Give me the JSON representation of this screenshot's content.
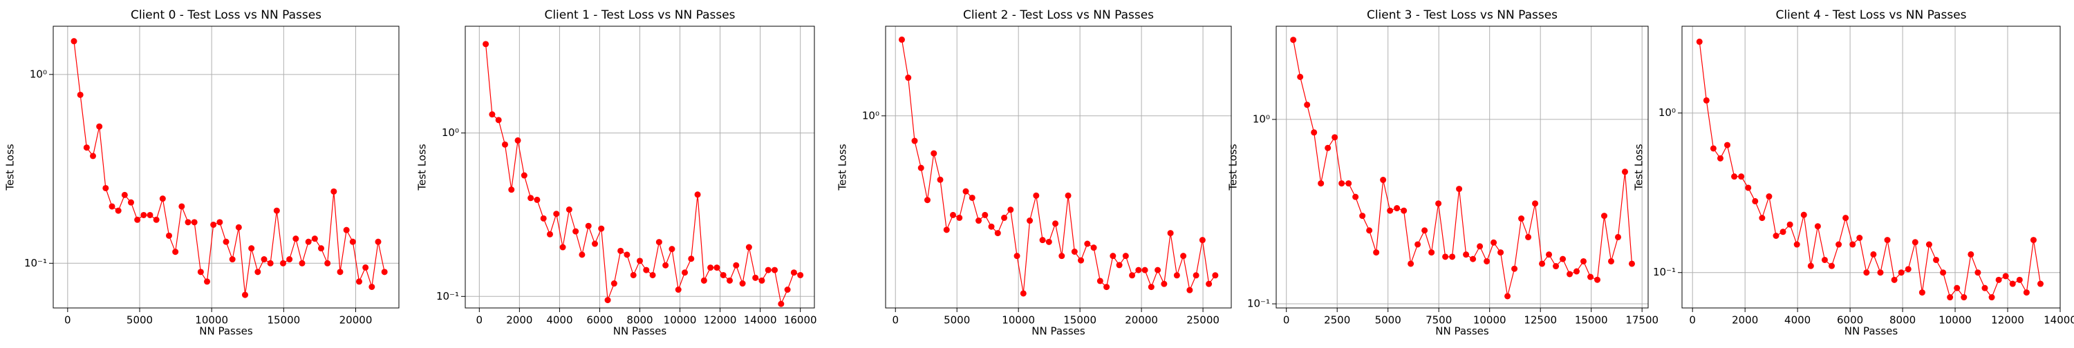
{
  "chart_data": [
    {
      "type": "line",
      "title": "Client 0 - Test Loss vs NN Passes",
      "x_label": "NN Passes",
      "y_label": "Test Loss",
      "color": "#ff0000",
      "log_y": true,
      "grid": true,
      "x": [
        440,
        880,
        1320,
        1760,
        2200,
        2640,
        3080,
        3520,
        3960,
        4400,
        4840,
        5280,
        5720,
        6160,
        6600,
        7040,
        7480,
        7920,
        8360,
        8800,
        9240,
        9680,
        10120,
        10560,
        11000,
        11440,
        11880,
        12320,
        12760,
        13200,
        13640,
        14080,
        14520,
        14960,
        15400,
        15840,
        16280,
        16720,
        17160,
        17600,
        18040,
        18480,
        18920,
        19360,
        19800,
        20240,
        20680,
        21120,
        21560,
        22000
      ],
      "values": [
        1.5,
        0.78,
        0.41,
        0.37,
        0.53,
        0.25,
        0.2,
        0.19,
        0.23,
        0.21,
        0.17,
        0.18,
        0.18,
        0.17,
        0.22,
        0.14,
        0.115,
        0.2,
        0.165,
        0.165,
        0.09,
        0.08,
        0.16,
        0.165,
        0.13,
        0.105,
        0.155,
        0.068,
        0.12,
        0.09,
        0.105,
        0.1,
        0.19,
        0.1,
        0.105,
        0.135,
        0.1,
        0.13,
        0.135,
        0.12,
        0.1,
        0.24,
        0.09,
        0.15,
        0.13,
        0.08,
        0.095,
        0.075,
        0.13,
        0.09
      ],
      "xlim": [
        -1000,
        23000
      ],
      "xticks": [
        0,
        5000,
        10000,
        15000,
        20000
      ],
      "ylim": [
        0.058,
        1.8
      ],
      "yticks": [
        {
          "value": 0.1,
          "label": "10⁻¹"
        },
        {
          "value": 1,
          "label": "10⁰"
        }
      ]
    },
    {
      "type": "line",
      "title": "Client 1 - Test Loss vs NN Passes",
      "x_label": "NN Passes",
      "y_label": "Test Loss",
      "color": "#ff0000",
      "log_y": true,
      "grid": true,
      "x": [
        320,
        640,
        960,
        1280,
        1600,
        1920,
        2240,
        2560,
        2880,
        3200,
        3520,
        3840,
        4160,
        4480,
        4800,
        5120,
        5440,
        5760,
        6080,
        6400,
        6720,
        7040,
        7360,
        7680,
        8000,
        8320,
        8640,
        8960,
        9280,
        9600,
        9920,
        10240,
        10560,
        10880,
        11200,
        11520,
        11840,
        12160,
        12480,
        12800,
        13120,
        13440,
        13760,
        14080,
        14400,
        14720,
        15040,
        15360,
        15680,
        16000
      ],
      "values": [
        3.5,
        1.3,
        1.2,
        0.85,
        0.45,
        0.9,
        0.55,
        0.4,
        0.39,
        0.3,
        0.24,
        0.32,
        0.2,
        0.34,
        0.25,
        0.18,
        0.27,
        0.21,
        0.26,
        0.095,
        0.12,
        0.19,
        0.18,
        0.135,
        0.165,
        0.145,
        0.135,
        0.215,
        0.155,
        0.195,
        0.11,
        0.14,
        0.17,
        0.42,
        0.125,
        0.15,
        0.15,
        0.135,
        0.125,
        0.155,
        0.12,
        0.2,
        0.13,
        0.125,
        0.145,
        0.145,
        0.09,
        0.11,
        0.14,
        0.135
      ],
      "xlim": [
        -700,
        16700
      ],
      "xticks": [
        0,
        2000,
        4000,
        6000,
        8000,
        10000,
        12000,
        14000,
        16000
      ],
      "ylim": [
        0.085,
        4.5
      ],
      "yticks": [
        {
          "value": 0.1,
          "label": "10⁻¹"
        },
        {
          "value": 1,
          "label": "10⁰"
        }
      ]
    },
    {
      "type": "line",
      "title": "Client 2 - Test Loss vs NN Passes",
      "x_label": "NN Passes",
      "y_label": "Test Loss",
      "color": "#ff0000",
      "log_y": true,
      "grid": true,
      "x": [
        520,
        1040,
        1560,
        2080,
        2600,
        3120,
        3640,
        4160,
        4680,
        5200,
        5720,
        6240,
        6760,
        7280,
        7800,
        8320,
        8840,
        9360,
        9880,
        10400,
        10920,
        11440,
        11960,
        12480,
        13000,
        13520,
        14040,
        14560,
        15080,
        15600,
        16120,
        16640,
        17160,
        17680,
        18200,
        18720,
        19240,
        19760,
        20280,
        20800,
        21320,
        21840,
        22360,
        22880,
        23400,
        23920,
        24440,
        24960,
        25480,
        26000
      ],
      "values": [
        2.4,
        1.55,
        0.75,
        0.55,
        0.38,
        0.65,
        0.48,
        0.27,
        0.32,
        0.31,
        0.42,
        0.39,
        0.3,
        0.32,
        0.28,
        0.26,
        0.31,
        0.34,
        0.2,
        0.13,
        0.3,
        0.4,
        0.24,
        0.235,
        0.29,
        0.2,
        0.4,
        0.21,
        0.19,
        0.23,
        0.22,
        0.15,
        0.14,
        0.2,
        0.18,
        0.2,
        0.16,
        0.17,
        0.17,
        0.14,
        0.17,
        0.145,
        0.26,
        0.16,
        0.2,
        0.135,
        0.16,
        0.24,
        0.145,
        0.16
      ],
      "xlim": [
        -800,
        27300
      ],
      "xticks": [
        0,
        5000,
        10000,
        15000,
        20000,
        25000
      ],
      "ylim": [
        0.11,
        2.8
      ],
      "yticks": [
        {
          "value": 1,
          "label": "10⁰"
        }
      ]
    },
    {
      "type": "line",
      "title": "Client 3 - Test Loss vs NN Passes",
      "x_label": "NN Passes",
      "y_label": "Test Loss",
      "color": "#ff0000",
      "log_y": true,
      "grid": true,
      "x": [
        340,
        680,
        1020,
        1360,
        1700,
        2040,
        2380,
        2720,
        3060,
        3400,
        3740,
        4080,
        4420,
        4760,
        5100,
        5440,
        5780,
        6120,
        6460,
        6800,
        7140,
        7480,
        7820,
        8160,
        8500,
        8840,
        9180,
        9520,
        9860,
        10200,
        10540,
        10880,
        11220,
        11560,
        11900,
        12240,
        12580,
        12920,
        13260,
        13600,
        13940,
        14280,
        14620,
        14960,
        15300,
        15640,
        15980,
        16320,
        16660,
        17000
      ],
      "values": [
        2.7,
        1.7,
        1.2,
        0.85,
        0.45,
        0.7,
        0.8,
        0.45,
        0.45,
        0.38,
        0.3,
        0.25,
        0.19,
        0.47,
        0.32,
        0.33,
        0.32,
        0.165,
        0.21,
        0.25,
        0.19,
        0.35,
        0.18,
        0.18,
        0.42,
        0.185,
        0.175,
        0.205,
        0.17,
        0.215,
        0.19,
        0.11,
        0.155,
        0.29,
        0.23,
        0.35,
        0.165,
        0.185,
        0.16,
        0.175,
        0.145,
        0.15,
        0.17,
        0.14,
        0.135,
        0.3,
        0.17,
        0.23,
        0.52,
        0.165
      ],
      "xlim": [
        -500,
        17800
      ],
      "xticks": [
        0,
        2500,
        5000,
        7500,
        10000,
        12500,
        15000,
        17500
      ],
      "ylim": [
        0.095,
        3.2
      ],
      "yticks": [
        {
          "value": 0.1,
          "label": "10⁻¹"
        },
        {
          "value": 1,
          "label": "10⁰"
        }
      ]
    },
    {
      "type": "line",
      "title": "Client 4 - Test Loss vs NN Passes",
      "x_label": "NN Passes",
      "y_label": "Test Loss",
      "color": "#ff0000",
      "log_y": true,
      "grid": true,
      "x": [
        265,
        530,
        795,
        1060,
        1325,
        1590,
        1855,
        2120,
        2385,
        2650,
        2915,
        3180,
        3445,
        3710,
        3975,
        4240,
        4505,
        4770,
        5035,
        5300,
        5565,
        5830,
        6095,
        6360,
        6625,
        6890,
        7155,
        7420,
        7685,
        7950,
        8215,
        8480,
        8745,
        9010,
        9275,
        9540,
        9805,
        10070,
        10335,
        10600,
        10865,
        11130,
        11395,
        11660,
        11925,
        12190,
        12455,
        12720,
        12985,
        13250
      ],
      "values": [
        2.8,
        1.2,
        0.6,
        0.52,
        0.63,
        0.4,
        0.4,
        0.34,
        0.28,
        0.22,
        0.3,
        0.17,
        0.18,
        0.2,
        0.15,
        0.23,
        0.11,
        0.195,
        0.12,
        0.11,
        0.15,
        0.22,
        0.15,
        0.165,
        0.1,
        0.13,
        0.1,
        0.16,
        0.09,
        0.1,
        0.105,
        0.155,
        0.075,
        0.15,
        0.12,
        0.1,
        0.07,
        0.08,
        0.07,
        0.13,
        0.1,
        0.08,
        0.07,
        0.09,
        0.095,
        0.085,
        0.09,
        0.075,
        0.16,
        0.085
      ],
      "xlim": [
        -400,
        14000
      ],
      "xticks": [
        0,
        2000,
        4000,
        6000,
        8000,
        10000,
        12000,
        14000
      ],
      "ylim": [
        0.06,
        3.5
      ],
      "yticks": [
        {
          "value": 0.1,
          "label": "10⁻¹"
        },
        {
          "value": 1,
          "label": "10⁰"
        }
      ]
    }
  ]
}
